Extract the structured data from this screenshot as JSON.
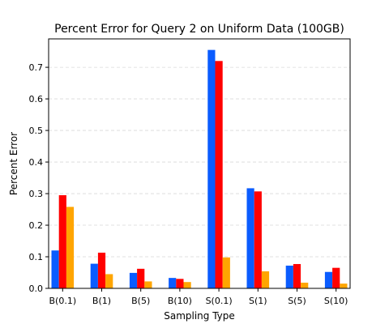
{
  "chart_data": {
    "type": "bar",
    "title": "Percent Error for Query 2 on Uniform Data (100GB)",
    "xlabel": "Sampling Type",
    "ylabel": "Percent Error",
    "categories": [
      "B(0.1)",
      "B(1)",
      "B(5)",
      "B(10)",
      "S(0.1)",
      "S(1)",
      "S(5)",
      "S(10)"
    ],
    "ylim": [
      0,
      0.79
    ],
    "yticks": [
      0.0,
      0.1,
      0.2,
      0.3,
      0.4,
      0.5,
      0.6,
      0.7
    ],
    "ytick_labels": [
      "0.0",
      "0.1",
      "0.2",
      "0.3",
      "0.4",
      "0.5",
      "0.6",
      "0.7"
    ],
    "grid": "horizontal dashed",
    "series": [
      {
        "color": "#0a5cff",
        "values": [
          0.12,
          0.078,
          0.049,
          0.033,
          0.755,
          0.317,
          0.072,
          0.052
        ]
      },
      {
        "color": "#ff0000",
        "values": [
          0.295,
          0.113,
          0.062,
          0.03,
          0.72,
          0.307,
          0.077,
          0.065
        ]
      },
      {
        "color": "#ffa500",
        "values": [
          0.258,
          0.045,
          0.022,
          0.02,
          0.098,
          0.054,
          0.018,
          0.015
        ]
      }
    ]
  }
}
